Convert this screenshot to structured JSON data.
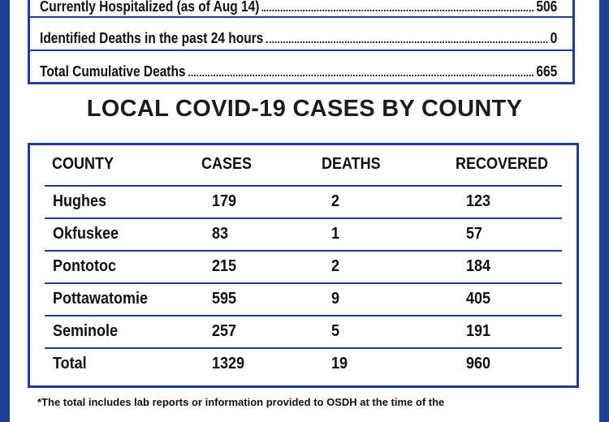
{
  "summary": {
    "hospitalized_label": "Currently Hospitalized (as of Aug 14)",
    "hospitalized_value": "506",
    "deaths24_label": "Identified Deaths in the past 24 hours",
    "deaths24_value": "0",
    "cumulative_label": "Total Cumulative Deaths",
    "cumulative_value": "665"
  },
  "heading": "LOCAL COVID-19 CASES BY COUNTY",
  "table": {
    "headers": [
      "COUNTY",
      "CASES",
      "DEATHS",
      "RECOVERED"
    ],
    "rows": [
      [
        "Hughes",
        "179",
        "2",
        "123"
      ],
      [
        "Okfuskee",
        "83",
        "1",
        "57"
      ],
      [
        "Pontotoc",
        "215",
        "2",
        "184"
      ],
      [
        "Pottawatomie",
        "595",
        "9",
        "405"
      ],
      [
        "Seminole",
        "257",
        "5",
        "191"
      ],
      [
        "Total",
        "1329",
        "19",
        "960"
      ]
    ]
  },
  "colors": {
    "border": "#1f3f95",
    "background": "#ffffff"
  },
  "footnote": "*The total includes lab reports or information provided to OSDH at the time of the"
}
